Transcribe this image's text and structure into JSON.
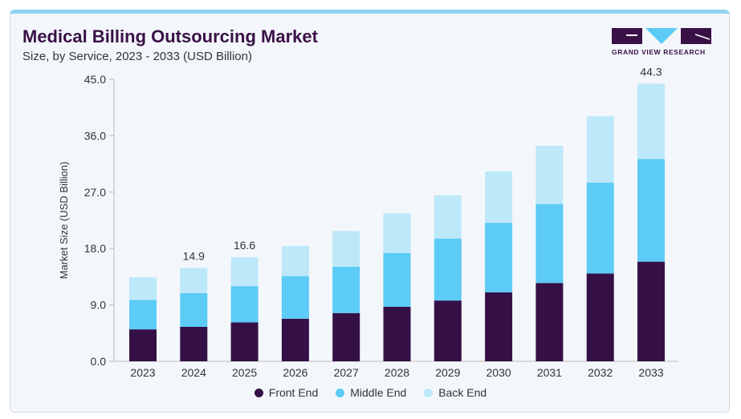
{
  "header": {
    "title": "Medical Billing Outsourcing Market",
    "subtitle": "Size, by Service, 2023 - 2033 (USD Billion)"
  },
  "logo": {
    "text": "GRAND VIEW RESEARCH"
  },
  "chart_data": {
    "type": "bar",
    "stacked": true,
    "title": "Medical Billing Outsourcing Market",
    "subtitle": "Size, by Service, 2023 - 2033 (USD Billion)",
    "xlabel": "",
    "ylabel": "Market Size (USD Billion)",
    "ylim": [
      0,
      45
    ],
    "yticks": [
      "0.0",
      "9.0",
      "18.0",
      "27.0",
      "36.0",
      "45.0"
    ],
    "categories": [
      "2023",
      "2024",
      "2025",
      "2026",
      "2027",
      "2028",
      "2029",
      "2030",
      "2031",
      "2032",
      "2033"
    ],
    "series": [
      {
        "name": "Front End",
        "color": "#351046",
        "values": [
          5.1,
          5.5,
          6.2,
          6.8,
          7.7,
          8.7,
          9.7,
          11.0,
          12.5,
          14.0,
          15.9
        ]
      },
      {
        "name": "Middle End",
        "color": "#5ccbf6",
        "values": [
          4.7,
          5.4,
          5.8,
          6.8,
          7.4,
          8.6,
          9.9,
          11.1,
          12.6,
          14.5,
          16.4
        ]
      },
      {
        "name": "Back End",
        "color": "#bde8f9",
        "values": [
          3.6,
          4.0,
          4.6,
          4.8,
          5.7,
          6.3,
          6.9,
          8.2,
          9.3,
          10.6,
          12.0
        ]
      }
    ],
    "data_labels": [
      {
        "category": "2024",
        "text": "14.9"
      },
      {
        "category": "2025",
        "text": "16.6"
      },
      {
        "category": "2033",
        "text": "44.3"
      }
    ],
    "grid": false,
    "legend": "bottom"
  }
}
